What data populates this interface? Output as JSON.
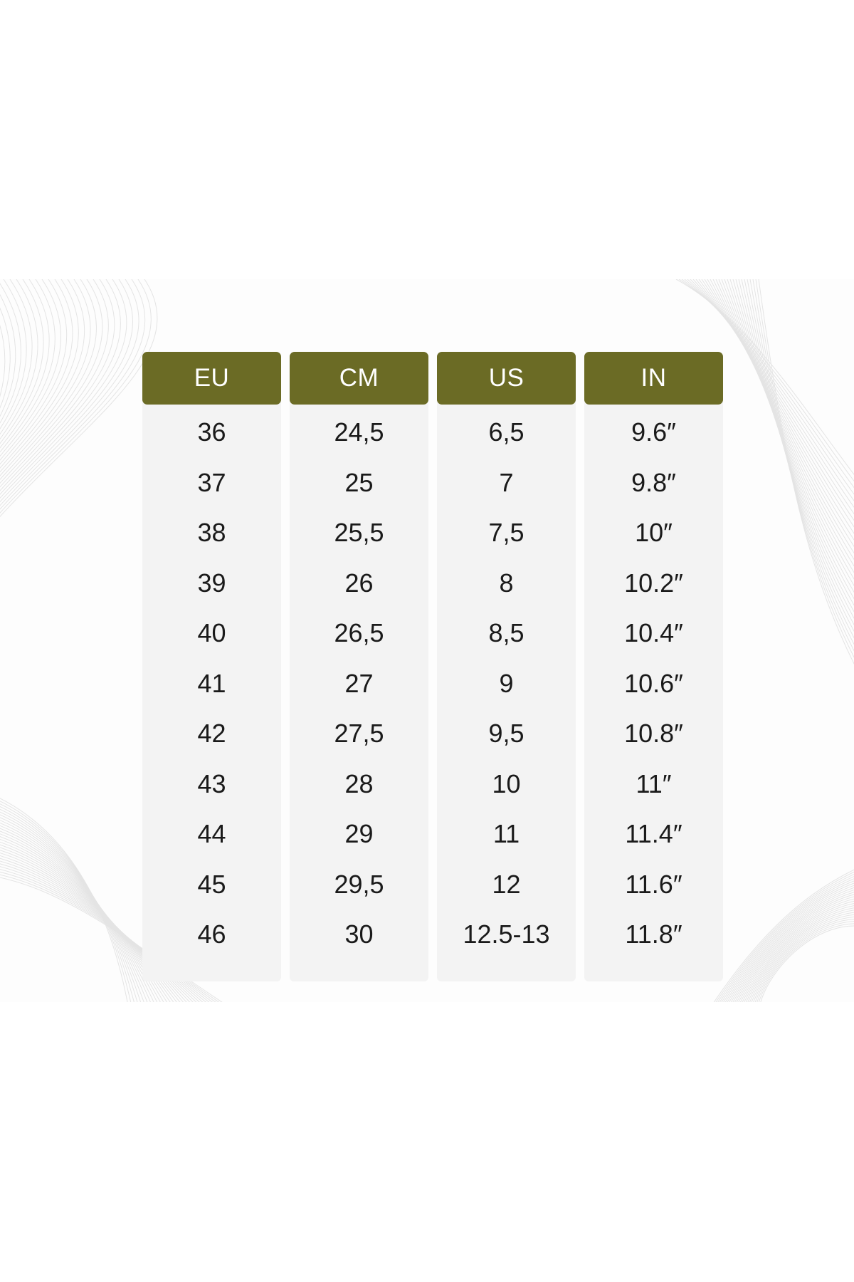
{
  "size_chart": {
    "columns": [
      {
        "header": "EU",
        "values": [
          "36",
          "37",
          "38",
          "39",
          "40",
          "41",
          "42",
          "43",
          "44",
          "45",
          "46"
        ]
      },
      {
        "header": "CM",
        "values": [
          "24,5",
          "25",
          "25,5",
          "26",
          "26,5",
          "27",
          "27,5",
          "28",
          "29",
          "29,5",
          "30"
        ]
      },
      {
        "header": "US",
        "values": [
          "6,5",
          "7",
          "7,5",
          "8",
          "8,5",
          "9",
          "9,5",
          "10",
          "11",
          "12",
          "12.5-13"
        ]
      },
      {
        "header": "IN",
        "values": [
          "9.6″",
          "9.8″",
          "10″",
          "10.2″",
          "10.4″",
          "10.6″",
          "10.8″",
          "11″",
          "11.4″",
          "11.6″",
          "11.8″"
        ]
      }
    ]
  },
  "colors": {
    "header_bg": "#6b6b25",
    "header_text": "#ffffff",
    "column_bg": "#f3f3f3",
    "cell_text": "#1a1a1a",
    "page_bg": "#ffffff"
  },
  "decorations": [
    "wave-lines-pattern"
  ]
}
